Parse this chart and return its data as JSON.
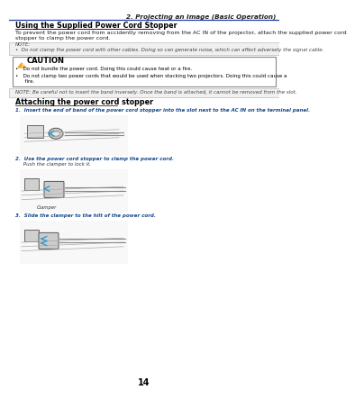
{
  "page_num": "14",
  "header_text": "2. Projecting an Image (Basic Operation)",
  "section_title": "Using the Supplied Power Cord Stopper",
  "section_body_1": "To prevent the power cord from accidently removing from the AC IN of the projector, attach the supplied power cord",
  "section_body_2": "stopper to clamp the power cord.",
  "note_label": "NOTE:",
  "note_text": "•  Do not clamp the power cord with other cables. Doing so can generate noise, which can affect adversely the signal cable.",
  "caution_label": "CAUTION",
  "caution_bullet1": "•   Do not bundle the power cord. Doing this could cause heat or a fire.",
  "caution_bullet2": "•   Do not clamp two power cords that would be used when stacking two projectors. Doing this could cause a",
  "caution_bullet2b": "      fire.",
  "note2_text": "NOTE: Be careful not to insert the band inversely. Once the band is attached, it cannot be removed from the slot.",
  "attach_title": "Attaching the power cord stopper",
  "step1_text": "1.  Insert the end of band of the power cord stopper into the slot next to the AC IN on the terminal panel.",
  "step2_text": "2.  Use the power cord stopper to clamp the power cord.",
  "step2_sub": "     Push the clamper to lock it.",
  "step2_label": "Clamper",
  "step3_text": "3.  Slide the clamper to the hilt of the power cord.",
  "bg_color": "#ffffff",
  "text_color": "#1a1a1a",
  "header_bg": "#1a3a6e",
  "header_text_color": "#ffffff",
  "note_bg": "#f0f0f0",
  "note_border": "#bbbbbb",
  "caution_bg": "#ffffff",
  "caution_border": "#888888",
  "warning_yellow": "#f5a623",
  "italic_color": "#333333",
  "blue_arrow": "#3399cc",
  "gray_line": "#999999",
  "header_line_color": "#2244aa",
  "step_text_color": "#1a4a8a"
}
